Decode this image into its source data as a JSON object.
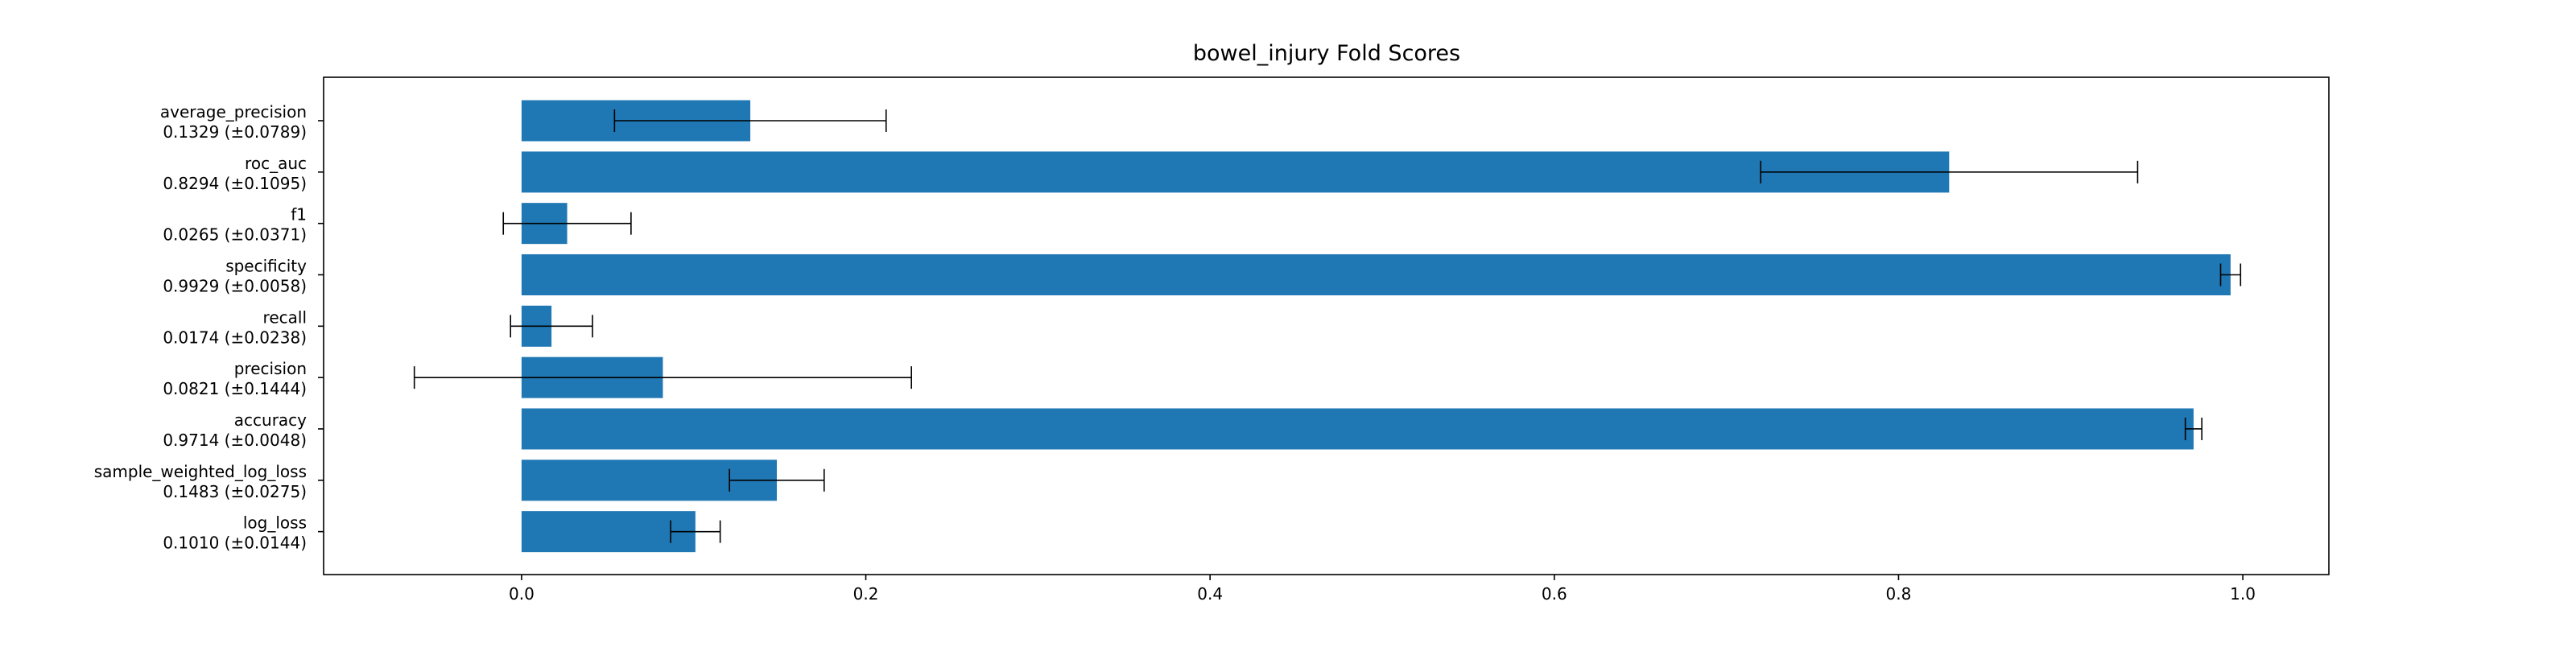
{
  "chart_data": {
    "type": "bar",
    "orientation": "horizontal",
    "title": "bowel_injury Fold Scores",
    "xlabel": "",
    "ylabel": "",
    "xlim": [
      -0.115,
      1.05
    ],
    "xticks": [
      0.0,
      0.2,
      0.4,
      0.6,
      0.8,
      1.0
    ],
    "xtick_labels": [
      "0.0",
      "0.2",
      "0.4",
      "0.6",
      "0.8",
      "1.0"
    ],
    "grid": false,
    "bar_color": "#1f77b4",
    "error_color": "#000000",
    "categories": [
      {
        "name": "average_precision",
        "label": "0.1329 (±0.0789)",
        "value": 0.1329,
        "err": 0.0789
      },
      {
        "name": "roc_auc",
        "label": "0.8294 (±0.1095)",
        "value": 0.8294,
        "err": 0.1095
      },
      {
        "name": "f1",
        "label": "0.0265 (±0.0371)",
        "value": 0.0265,
        "err": 0.0371
      },
      {
        "name": "specificity",
        "label": "0.9929 (±0.0058)",
        "value": 0.9929,
        "err": 0.0058
      },
      {
        "name": "recall",
        "label": "0.0174 (±0.0238)",
        "value": 0.0174,
        "err": 0.0238
      },
      {
        "name": "precision",
        "label": "0.0821 (±0.1444)",
        "value": 0.0821,
        "err": 0.1444
      },
      {
        "name": "accuracy",
        "label": "0.9714 (±0.0048)",
        "value": 0.9714,
        "err": 0.0048
      },
      {
        "name": "sample_weighted_log_loss",
        "label": "0.1483 (±0.0275)",
        "value": 0.1483,
        "err": 0.0275
      },
      {
        "name": "log_loss",
        "label": "0.1010 (±0.0144)",
        "value": 0.101,
        "err": 0.0144
      }
    ]
  }
}
